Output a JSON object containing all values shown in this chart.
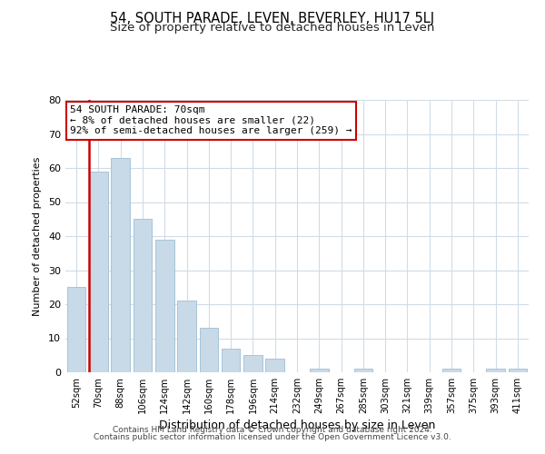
{
  "title": "54, SOUTH PARADE, LEVEN, BEVERLEY, HU17 5LJ",
  "subtitle": "Size of property relative to detached houses in Leven",
  "xlabel": "Distribution of detached houses by size in Leven",
  "ylabel": "Number of detached properties",
  "bin_labels": [
    "52sqm",
    "70sqm",
    "88sqm",
    "106sqm",
    "124sqm",
    "142sqm",
    "160sqm",
    "178sqm",
    "196sqm",
    "214sqm",
    "232sqm",
    "249sqm",
    "267sqm",
    "285sqm",
    "303sqm",
    "321sqm",
    "339sqm",
    "357sqm",
    "375sqm",
    "393sqm",
    "411sqm"
  ],
  "bar_heights": [
    25,
    59,
    63,
    45,
    39,
    21,
    13,
    7,
    5,
    4,
    0,
    1,
    0,
    1,
    0,
    0,
    0,
    1,
    0,
    1,
    1
  ],
  "bar_color": "#c8d9e8",
  "bar_edge_color": "#a8c4d8",
  "highlight_bar_index": 1,
  "highlight_line_color": "#cc0000",
  "ylim": [
    0,
    80
  ],
  "yticks": [
    0,
    10,
    20,
    30,
    40,
    50,
    60,
    70,
    80
  ],
  "annotation_title": "54 SOUTH PARADE: 70sqm",
  "annotation_line1": "← 8% of detached houses are smaller (22)",
  "annotation_line2": "92% of semi-detached houses are larger (259) →",
  "annotation_box_color": "#ffffff",
  "annotation_box_edge": "#cc0000",
  "footer_line1": "Contains HM Land Registry data © Crown copyright and database right 2024.",
  "footer_line2": "Contains public sector information licensed under the Open Government Licence v3.0.",
  "background_color": "#ffffff",
  "grid_color": "#d0dce8",
  "title_fontsize": 10.5,
  "subtitle_fontsize": 9.5
}
